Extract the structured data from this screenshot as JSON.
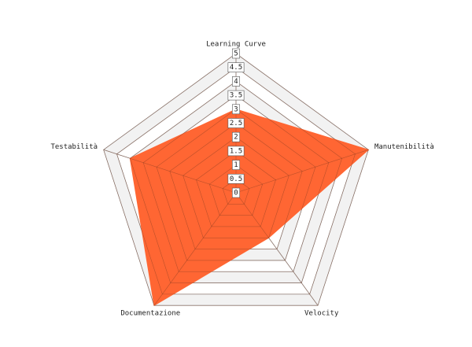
{
  "chart_data": {
    "type": "radar",
    "categories": [
      "Learning Curve",
      "Manutenibilità",
      "Velocity",
      "Documentazione",
      "Testabilità"
    ],
    "series": [
      {
        "name": null,
        "color": "#ff6633",
        "values": [
          3,
          5,
          2,
          5,
          4
        ]
      }
    ],
    "ylim": [
      0,
      5
    ],
    "yticks": [
      0,
      0.5,
      1,
      1.5,
      2,
      2.5,
      3,
      3.5,
      4,
      4.5,
      5
    ],
    "grid": true
  }
}
